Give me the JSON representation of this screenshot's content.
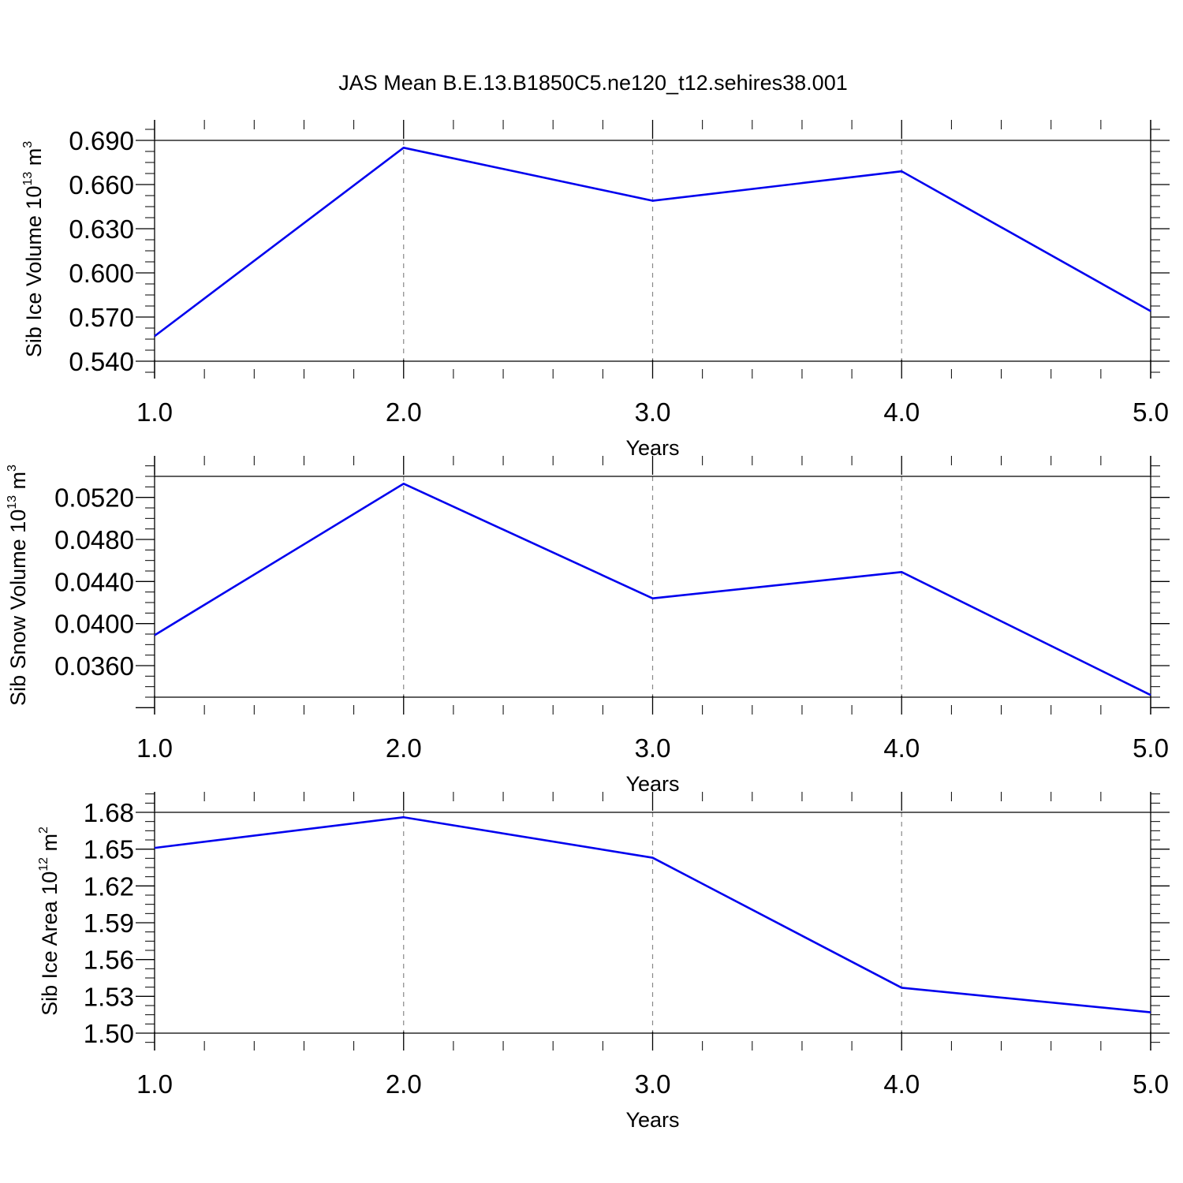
{
  "figure": {
    "title": "JAS Mean B.E.13.B1850C5.ne120_t12.sehires38.001"
  },
  "chart_data": [
    {
      "type": "line",
      "ylabel": "Sib Ice Volume 10",
      "ylabel_exp": "13",
      "ylabel_unit": " m",
      "ylabel_unit_exp": "3",
      "xlabel": "Years",
      "xlim": [
        1.0,
        5.0
      ],
      "ylim": [
        0.54,
        0.69
      ],
      "x_ticks": [
        1.0,
        2.0,
        3.0,
        4.0,
        5.0
      ],
      "x_tick_labels": [
        "1.0",
        "2.0",
        "3.0",
        "4.0",
        "5.0"
      ],
      "y_ticks": [
        0.54,
        0.57,
        0.6,
        0.63,
        0.66,
        0.69
      ],
      "y_tick_labels": [
        "0.540",
        "0.570",
        "0.600",
        "0.630",
        "0.660",
        "0.690"
      ],
      "x_grid": true,
      "series": [
        {
          "x": [
            1,
            2,
            3,
            4,
            5
          ],
          "values": [
            0.557,
            0.685,
            0.649,
            0.669,
            0.574
          ],
          "color": "#0000ee"
        }
      ]
    },
    {
      "type": "line",
      "ylabel": "Sib Snow Volume 10",
      "ylabel_exp": "13",
      "ylabel_unit": " m",
      "ylabel_unit_exp": "3",
      "xlabel": "Years",
      "xlim": [
        1.0,
        5.0
      ],
      "ylim": [
        0.033,
        0.054
      ],
      "x_ticks": [
        1.0,
        2.0,
        3.0,
        4.0,
        5.0
      ],
      "x_tick_labels": [
        "1.0",
        "2.0",
        "3.0",
        "4.0",
        "5.0"
      ],
      "y_ticks": [
        0.036,
        0.04,
        0.044,
        0.048,
        0.052
      ],
      "y_tick_labels": [
        "0.0360",
        "0.0400",
        "0.0440",
        "0.0480",
        "0.0520"
      ],
      "x_grid": true,
      "series": [
        {
          "x": [
            1,
            2,
            3,
            4,
            5
          ],
          "values": [
            0.0389,
            0.0533,
            0.0424,
            0.0449,
            0.0332
          ],
          "color": "#0000ee"
        }
      ]
    },
    {
      "type": "line",
      "ylabel": "Sib Ice Area 10",
      "ylabel_exp": "12",
      "ylabel_unit": " m",
      "ylabel_unit_exp": "2",
      "xlabel": "Years",
      "xlim": [
        1.0,
        5.0
      ],
      "ylim": [
        1.5,
        1.68
      ],
      "x_ticks": [
        1.0,
        2.0,
        3.0,
        4.0,
        5.0
      ],
      "x_tick_labels": [
        "1.0",
        "2.0",
        "3.0",
        "4.0",
        "5.0"
      ],
      "y_ticks": [
        1.5,
        1.53,
        1.56,
        1.59,
        1.62,
        1.65,
        1.68
      ],
      "y_tick_labels": [
        "1.50",
        "1.53",
        "1.56",
        "1.59",
        "1.62",
        "1.65",
        "1.68"
      ],
      "x_grid": true,
      "series": [
        {
          "x": [
            1,
            2,
            3,
            4,
            5
          ],
          "values": [
            1.651,
            1.676,
            1.643,
            1.537,
            1.517
          ],
          "color": "#0000ee"
        }
      ]
    }
  ]
}
